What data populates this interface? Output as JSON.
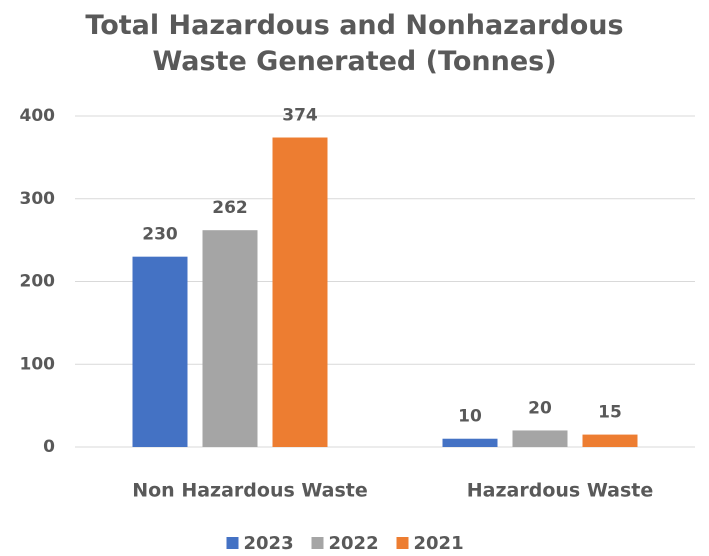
{
  "chart_data": {
    "type": "bar",
    "title": "Total Hazardous and Nonhazardous Waste Generated (Tonnes)",
    "categories": [
      "Non Hazardous Waste",
      "Hazardous Waste"
    ],
    "series": [
      {
        "name": "2023",
        "color": "#4472c4",
        "values": [
          230,
          10
        ]
      },
      {
        "name": "2022",
        "color": "#a5a5a5",
        "values": [
          262,
          20
        ]
      },
      {
        "name": "2021",
        "color": "#ed7d31",
        "values": [
          374,
          15
        ]
      }
    ],
    "ylim": [
      0,
      400
    ],
    "yticks": [
      0,
      100,
      200,
      300,
      400
    ],
    "grid": true,
    "legend": "bottom"
  }
}
